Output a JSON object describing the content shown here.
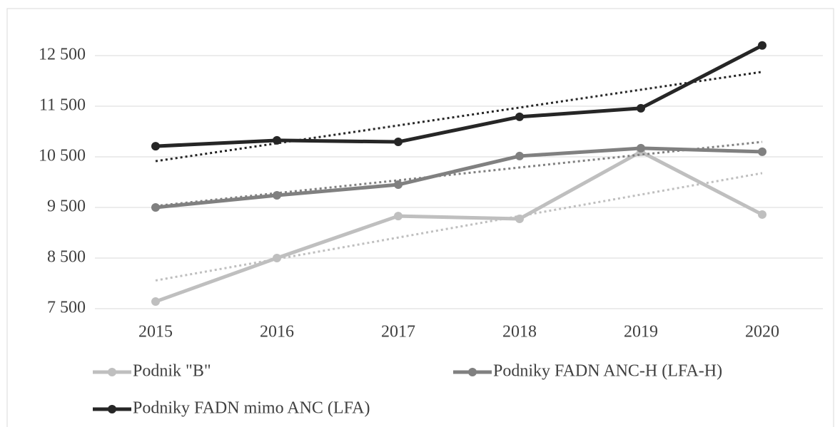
{
  "chart_data": {
    "type": "line",
    "categories": [
      "2015",
      "2016",
      "2017",
      "2018",
      "2019",
      "2020"
    ],
    "series": [
      {
        "name": "Podnik \"B\"",
        "color": "#bfbfbf",
        "values": [
          7640,
          8500,
          9330,
          9275,
          10600,
          9360
        ],
        "trendline": true
      },
      {
        "name": "Podniky FADN ANC-H (LFA-H)",
        "color": "#808080",
        "values": [
          9500,
          9740,
          9950,
          10515,
          10670,
          10600
        ],
        "trendline": true
      },
      {
        "name": "Podniky FADN mimo ANC (LFA)",
        "color": "#262626",
        "values": [
          10710,
          10825,
          10795,
          11290,
          11460,
          12700
        ],
        "trendline": true
      }
    ],
    "ylim": [
      7500,
      12900
    ],
    "yticks": [
      {
        "value": 7500,
        "label": "7 500"
      },
      {
        "value": 8500,
        "label": "8 500"
      },
      {
        "value": 9500,
        "label": "9 500"
      },
      {
        "value": 10500,
        "label": "10 500"
      },
      {
        "value": 11500,
        "label": "11 500"
      },
      {
        "value": 12500,
        "label": "12 500"
      }
    ],
    "grid": true,
    "legend": "bottom"
  }
}
